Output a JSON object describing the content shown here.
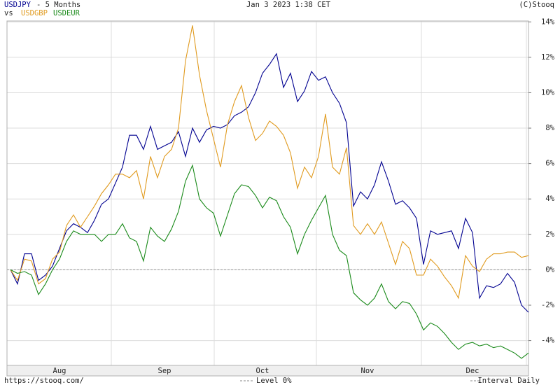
{
  "chart_data": {
    "type": "line",
    "subtitle": "- 5 Months",
    "legend_prefix": "vs",
    "timestamp": "Jan 3 2023 1:38 CET",
    "copyright": "(C)Stooq",
    "url": "https://stooq.com/",
    "level": 0,
    "level_label": "Level 0%",
    "interval_label": "Interval Daily",
    "ylim": [
      -5.4,
      14.05
    ],
    "yticks": [
      {
        "value": -4,
        "label": "-4%"
      },
      {
        "value": -2,
        "label": "-2%"
      },
      {
        "value": 0,
        "label": "0%"
      },
      {
        "value": 2,
        "label": "2%"
      },
      {
        "value": 4,
        "label": "4%"
      },
      {
        "value": 6,
        "label": "6%"
      },
      {
        "value": 8,
        "label": "8%"
      },
      {
        "value": 10,
        "label": "10%"
      },
      {
        "value": 12,
        "label": "12%"
      },
      {
        "value": 14,
        "label": "14%"
      }
    ],
    "grid": true,
    "categories": [
      null,
      null,
      null,
      null,
      null,
      null,
      null,
      "Aug",
      null,
      null,
      null,
      null,
      null,
      null,
      null,
      null,
      null,
      null,
      null,
      null,
      null,
      null,
      "Sep",
      null,
      null,
      null,
      null,
      null,
      null,
      null,
      null,
      null,
      null,
      null,
      null,
      null,
      "Oct",
      null,
      null,
      null,
      null,
      null,
      null,
      null,
      null,
      null,
      null,
      null,
      null,
      null,
      null,
      "Nov",
      null,
      null,
      null,
      null,
      null,
      null,
      null,
      null,
      null,
      null,
      null,
      null,
      null,
      null,
      "Dec",
      null,
      null,
      null,
      null,
      null,
      null,
      null,
      null
    ],
    "series": [
      {
        "name": "USDJPY",
        "color": "#000090",
        "values": [
          0,
          -0.8,
          0.9,
          0.9,
          -0.6,
          -0.3,
          0.2,
          1.2,
          2.2,
          2.6,
          2.4,
          2.1,
          2.8,
          3.7,
          4.0,
          4.9,
          5.8,
          7.6,
          7.6,
          6.8,
          8.1,
          6.8,
          7.0,
          7.2,
          7.8,
          6.4,
          8.0,
          7.2,
          7.9,
          8.1,
          8.0,
          8.2,
          8.7,
          8.9,
          9.2,
          10.0,
          11.1,
          11.6,
          12.2,
          10.3,
          11.1,
          9.5,
          10.1,
          11.2,
          10.7,
          10.9,
          10.0,
          9.4,
          8.3,
          3.6,
          4.4,
          4.0,
          4.8,
          6.1,
          5.0,
          3.7,
          3.9,
          3.5,
          2.9,
          0.3,
          2.2,
          2.0,
          2.1,
          2.2,
          1.2,
          2.9,
          2.1,
          -1.6,
          -0.9,
          -1.0,
          -0.8,
          -0.2,
          -0.7,
          -2.0,
          -2.4
        ]
      },
      {
        "name": "USDGBP",
        "color": "#e09a1e",
        "values": [
          0,
          -0.6,
          0.6,
          0.5,
          -0.8,
          -0.5,
          0.6,
          1.0,
          2.5,
          3.1,
          2.4,
          3.0,
          3.6,
          4.3,
          4.8,
          5.4,
          5.4,
          5.2,
          5.6,
          4.0,
          6.4,
          5.2,
          6.4,
          6.8,
          8.0,
          11.8,
          13.8,
          11.0,
          9.0,
          7.4,
          5.8,
          8.2,
          9.5,
          10.4,
          8.6,
          7.3,
          7.7,
          8.4,
          8.1,
          7.6,
          6.6,
          4.6,
          5.8,
          5.2,
          6.4,
          8.8,
          5.8,
          5.4,
          6.9,
          2.5,
          2.0,
          2.6,
          2.0,
          2.7,
          1.5,
          0.3,
          1.6,
          1.2,
          -0.3,
          -0.3,
          0.6,
          0.2,
          -0.4,
          -0.9,
          -1.6,
          0.8,
          0.2,
          -0.1,
          0.6,
          0.9,
          0.9,
          1.0,
          1.0,
          0.7,
          0.8
        ]
      },
      {
        "name": "USDEUR",
        "color": "#1a8a1a",
        "values": [
          0,
          -0.2,
          -0.1,
          -0.3,
          -1.4,
          -0.8,
          0.0,
          0.6,
          1.6,
          2.2,
          2.0,
          2.0,
          2.0,
          1.6,
          2.0,
          2.0,
          2.6,
          1.8,
          1.6,
          0.5,
          2.4,
          1.9,
          1.6,
          2.3,
          3.3,
          5.0,
          5.9,
          4.0,
          3.5,
          3.2,
          1.9,
          3.1,
          4.3,
          4.8,
          4.7,
          4.2,
          3.5,
          4.1,
          3.9,
          3.0,
          2.4,
          0.9,
          2.0,
          2.8,
          3.5,
          4.2,
          2.0,
          1.1,
          0.8,
          -1.3,
          -1.7,
          -2.0,
          -1.6,
          -0.8,
          -1.8,
          -2.2,
          -1.8,
          -1.9,
          -2.5,
          -3.4,
          -3.0,
          -3.2,
          -3.6,
          -4.1,
          -4.5,
          -4.2,
          -4.1,
          -4.3,
          -4.2,
          -4.4,
          -4.3,
          -4.5,
          -4.7,
          -5.0,
          -4.7
        ]
      }
    ]
  }
}
